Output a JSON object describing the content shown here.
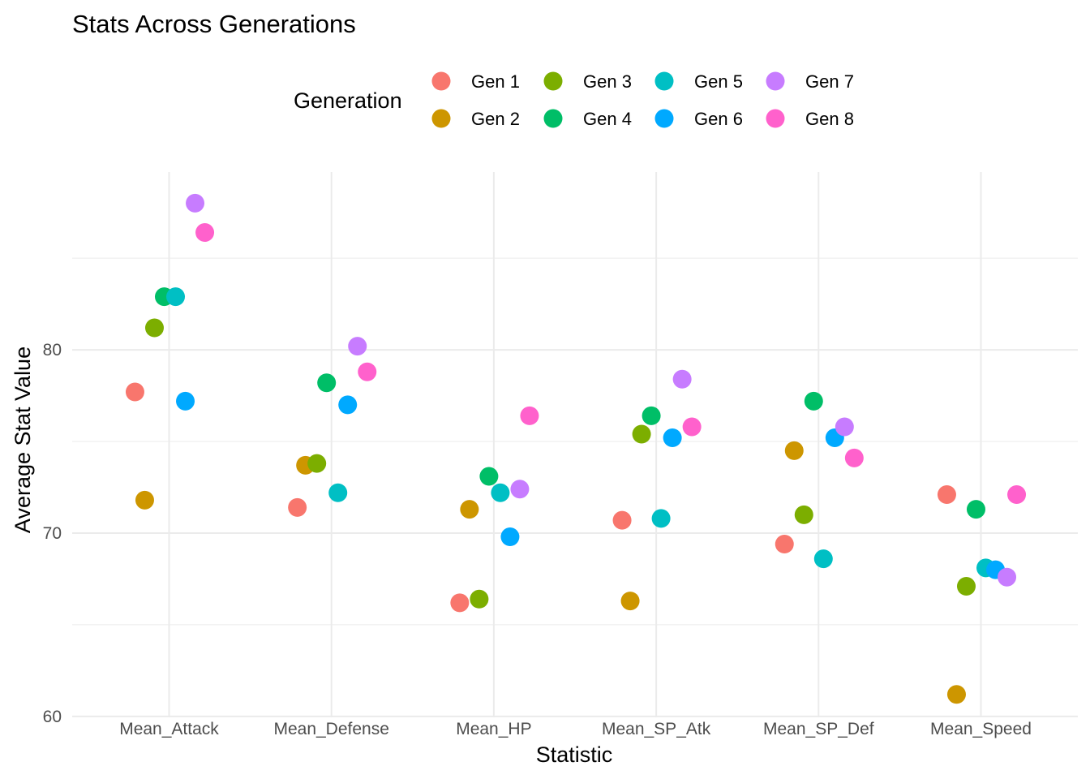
{
  "chart_data": {
    "type": "scatter",
    "title": "Stats Across Generations",
    "xlabel": "Statistic",
    "ylabel": "Average Stat Value",
    "categories": [
      "Mean_Attack",
      "Mean_Defense",
      "Mean_HP",
      "Mean_SP_Atk",
      "Mean_SP_Def",
      "Mean_Speed"
    ],
    "ylim": [
      59.95,
      89.7
    ],
    "y_ticks": [
      60,
      70,
      80
    ],
    "grid": true,
    "legend": {
      "title": "Generation",
      "position": "top"
    },
    "series": [
      {
        "name": "Gen 1",
        "color": "#F8766D",
        "values": [
          77.7,
          71.4,
          66.2,
          70.7,
          69.4,
          72.1
        ],
        "jitter": [
          -0.21,
          -0.21,
          -0.21,
          -0.21,
          -0.21,
          -0.21
        ]
      },
      {
        "name": "Gen 2",
        "color": "#CD9600",
        "values": [
          71.8,
          73.7,
          71.3,
          66.3,
          74.5,
          61.2
        ],
        "jitter": [
          -0.15,
          -0.16,
          -0.15,
          -0.16,
          -0.15,
          -0.15
        ]
      },
      {
        "name": "Gen 3",
        "color": "#7CAE00",
        "values": [
          81.2,
          73.8,
          66.4,
          75.4,
          71.0,
          67.1
        ],
        "jitter": [
          -0.09,
          -0.09,
          -0.09,
          -0.09,
          -0.09,
          -0.09
        ]
      },
      {
        "name": "Gen 4",
        "color": "#00BE67",
        "values": [
          82.9,
          78.2,
          73.1,
          76.4,
          77.2,
          71.3
        ],
        "jitter": [
          -0.03,
          -0.03,
          -0.03,
          -0.03,
          -0.03,
          -0.03
        ]
      },
      {
        "name": "Gen 5",
        "color": "#00BFC4",
        "values": [
          82.9,
          72.2,
          72.2,
          70.8,
          68.6,
          68.1
        ],
        "jitter": [
          0.04,
          0.04,
          0.04,
          0.03,
          0.03,
          0.03
        ]
      },
      {
        "name": "Gen 6",
        "color": "#00A9FF",
        "values": [
          77.2,
          77.0,
          69.8,
          75.2,
          75.2,
          68.0
        ],
        "jitter": [
          0.1,
          0.1,
          0.1,
          0.1,
          0.1,
          0.09
        ]
      },
      {
        "name": "Gen 7",
        "color": "#C77CFF",
        "values": [
          88.0,
          80.2,
          72.4,
          78.4,
          75.8,
          67.6
        ],
        "jitter": [
          0.16,
          0.16,
          0.16,
          0.16,
          0.16,
          0.16
        ]
      },
      {
        "name": "Gen 8",
        "color": "#FF61CC",
        "values": [
          86.4,
          78.8,
          76.4,
          75.8,
          74.1,
          72.1
        ],
        "jitter": [
          0.22,
          0.22,
          0.22,
          0.22,
          0.22,
          0.22
        ]
      }
    ]
  }
}
